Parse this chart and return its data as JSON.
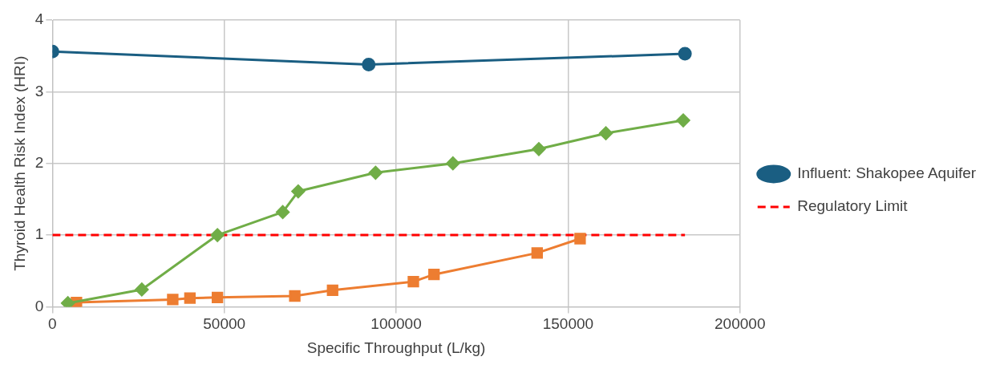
{
  "chart_data": {
    "type": "line",
    "xlabel": "Specific Throughput (L/kg)",
    "ylabel": "Thyroid Health Risk Index (HRI)",
    "xlim": [
      0,
      200000
    ],
    "xticks": [
      0,
      50000,
      100000,
      150000,
      200000
    ],
    "ylim": [
      0,
      4
    ],
    "yticks": [
      0,
      1,
      2,
      3,
      4
    ],
    "grid": true,
    "legend": "right",
    "series": [
      {
        "name": "Influent: Shakopee Aquifer",
        "color": "#1a5e82",
        "marker": "circle",
        "x": [
          0,
          92000,
          184000
        ],
        "values": [
          3.56,
          3.38,
          3.53
        ]
      },
      {
        "color": "#70ad47",
        "marker": "diamond",
        "x": [
          4500,
          26000,
          48000,
          67000,
          71500,
          94000,
          116500,
          141500,
          161000,
          183500
        ],
        "values": [
          0.05,
          0.24,
          1.0,
          1.32,
          1.61,
          1.87,
          2.0,
          2.2,
          2.42,
          2.6
        ]
      },
      {
        "color": "#ed7d31",
        "marker": "square",
        "x": [
          7000,
          35000,
          40000,
          48000,
          70500,
          81500,
          105000,
          111000,
          141000,
          153500
        ],
        "values": [
          0.06,
          0.1,
          0.12,
          0.13,
          0.15,
          0.23,
          0.35,
          0.45,
          0.75,
          0.95
        ]
      },
      {
        "name": "Regulatory Limit",
        "color": "#ff0000",
        "marker": "none",
        "line_style": "dashed",
        "x": [
          0,
          184000
        ],
        "values": [
          1,
          1
        ]
      }
    ]
  }
}
